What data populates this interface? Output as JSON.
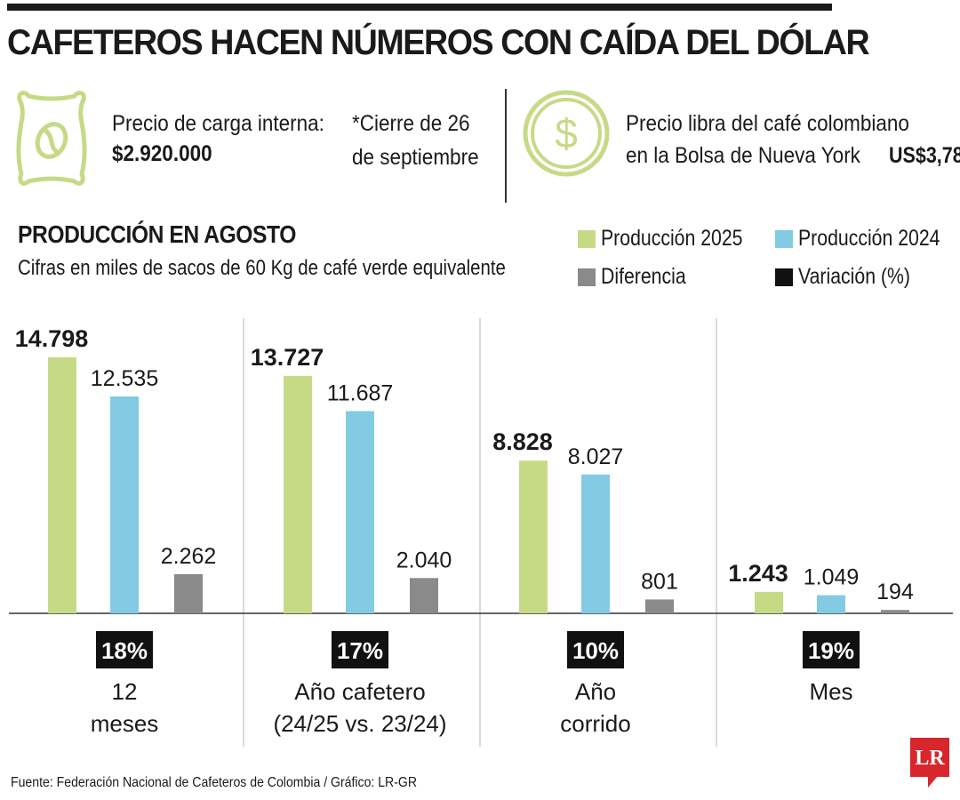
{
  "header": {
    "title": "CAFETEROS HACEN NÚMEROS CON CAÍDA DEL DÓLAR"
  },
  "info": {
    "internal_price_label": "Precio de carga interna:",
    "internal_price_value": "$2.920.000",
    "close_note_line1": "*Cierre de 26",
    "close_note_line2": "de septiembre",
    "ny_label_line1": "Precio libra del café colombiano",
    "ny_label_line2": "en la Bolsa de Nueva York",
    "ny_value": "US$3,78"
  },
  "section": {
    "title": "PRODUCCIÓN EN AGOSTO",
    "subtitle": "Cifras en miles de sacos de 60 Kg de café verde equivalente"
  },
  "colors": {
    "produccion_2025": "#c6da86",
    "produccion_2024": "#82cbe3",
    "diferencia": "#8a8a8a",
    "variacion": "#111111",
    "icon_green": "#c6da86",
    "logo_red": "#d7262c"
  },
  "icons": {
    "bag": "coffee-bag-icon",
    "dollar": "dollar-coin-icon",
    "logo": "lr-logo"
  },
  "chart_data": {
    "type": "bar",
    "title": "PRODUCCIÓN EN AGOSTO",
    "subtitle": "Cifras en miles de sacos de 60 Kg de café verde equivalente",
    "legend": [
      {
        "key": "produccion_2025",
        "label": "Producción 2025"
      },
      {
        "key": "produccion_2024",
        "label": "Producción 2024"
      },
      {
        "key": "diferencia",
        "label": "Diferencia"
      },
      {
        "key": "variacion",
        "label": "Variación (%)"
      }
    ],
    "ylim": [
      0,
      14798
    ],
    "groups": [
      {
        "category_lines": [
          "12",
          "meses"
        ],
        "produccion_2025": 14798,
        "produccion_2024": 12535,
        "diferencia": 2262,
        "labels": [
          "14.798",
          "12.535",
          "2.262"
        ],
        "variacion": "18%"
      },
      {
        "category_lines": [
          "Año cafetero",
          "(24/25 vs. 23/24)"
        ],
        "produccion_2025": 13727,
        "produccion_2024": 11687,
        "diferencia": 2040,
        "labels": [
          "13.727",
          "11.687",
          "2.040"
        ],
        "variacion": "17%"
      },
      {
        "category_lines": [
          "Año",
          "corrido"
        ],
        "produccion_2025": 8828,
        "produccion_2024": 8027,
        "diferencia": 801,
        "labels": [
          "8.828",
          "8.027",
          "801"
        ],
        "variacion": "10%"
      },
      {
        "category_lines": [
          "Mes"
        ],
        "produccion_2025": 1243,
        "produccion_2024": 1049,
        "diferencia": 194,
        "labels": [
          "1.243",
          "1.049",
          "194"
        ],
        "variacion": "19%"
      }
    ]
  },
  "footer": {
    "source": "Fuente: Federación Nacional de Cafeteros de Colombia / Gráfico: LR-GR",
    "logo_text": "LR"
  }
}
